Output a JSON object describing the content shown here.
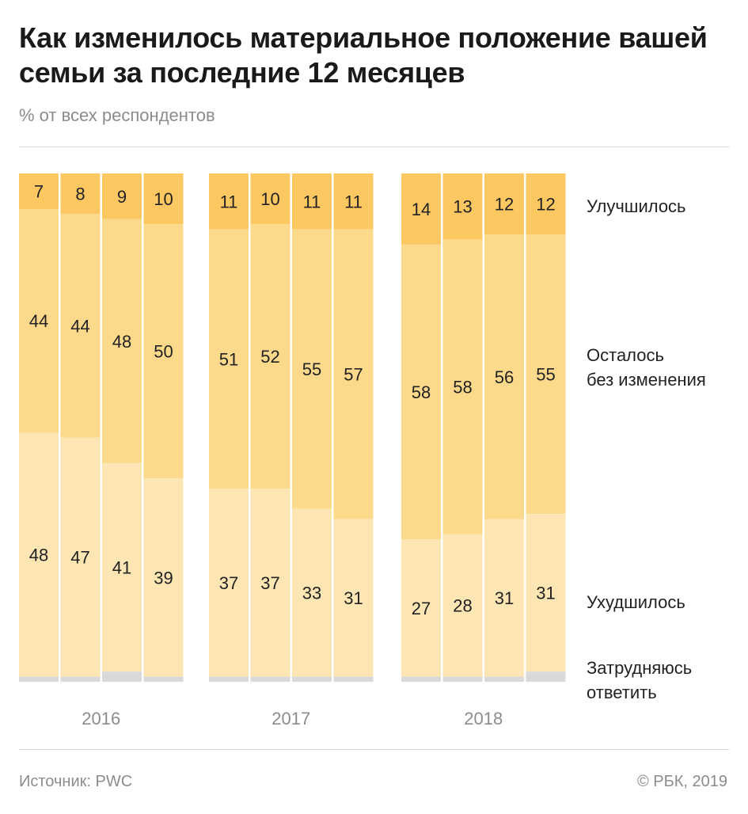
{
  "title": "Как изменилось материальное положение вашей семьи за последние 12 месяцев",
  "subtitle": "% от всех респондентов",
  "source": "Источник: PWC",
  "copyright": "© РБК, 2019",
  "colors": {
    "improved": "#fdc862",
    "unchanged": "#fdd98c",
    "worsened": "#fde6b4",
    "hard_to_say": "#d9d9d9"
  },
  "chart_data": {
    "type": "bar",
    "stacked": true,
    "groups": [
      "2016",
      "2017",
      "2018"
    ],
    "bars_per_group": 4,
    "series": [
      {
        "name": "Улучшилось",
        "values": [
          7,
          8,
          9,
          10,
          11,
          10,
          11,
          11,
          14,
          13,
          12,
          12
        ]
      },
      {
        "name": "Осталось без изменения",
        "values": [
          44,
          44,
          48,
          50,
          51,
          52,
          55,
          57,
          58,
          58,
          56,
          55
        ]
      },
      {
        "name": "Ухудшилось",
        "values": [
          48,
          47,
          41,
          39,
          37,
          37,
          33,
          31,
          27,
          28,
          31,
          31
        ]
      },
      {
        "name": "Затрудняюсь ответить",
        "values": [
          1,
          1,
          2,
          1,
          1,
          1,
          1,
          1,
          1,
          1,
          1,
          2
        ]
      }
    ],
    "ylim": [
      0,
      100
    ],
    "legend_labels": [
      {
        "lines": [
          "Улучшилось"
        ]
      },
      {
        "lines": [
          "Осталось",
          "без изменения"
        ]
      },
      {
        "lines": [
          "Ухудшилось"
        ]
      },
      {
        "lines": [
          "Затрудняюсь",
          "ответить"
        ]
      }
    ]
  }
}
